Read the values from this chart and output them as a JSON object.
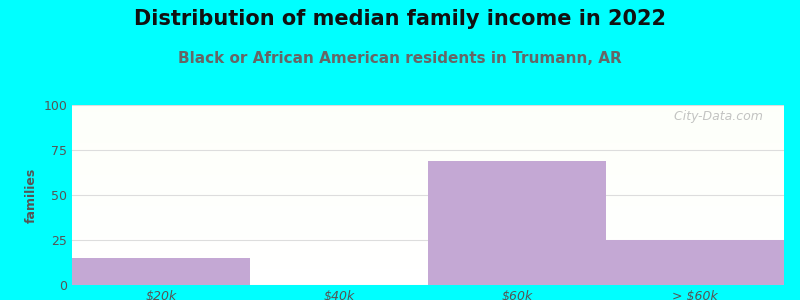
{
  "title": "Distribution of median family income in 2022",
  "subtitle": "Black or African American residents in Trumann, AR",
  "categories": [
    "$20k",
    "$40k",
    "$60k",
    "> $60k"
  ],
  "values": [
    15,
    0,
    69,
    25
  ],
  "bar_color": "#c4a8d4",
  "bg_color": "#00ffff",
  "ylabel": "families",
  "ylim": [
    0,
    100
  ],
  "yticks": [
    0,
    25,
    50,
    75,
    100
  ],
  "title_fontsize": 15,
  "subtitle_fontsize": 11,
  "subtitle_color": "#666666",
  "watermark": "   City-Data.com",
  "bar_width": 1.0,
  "title_color": "#111111"
}
